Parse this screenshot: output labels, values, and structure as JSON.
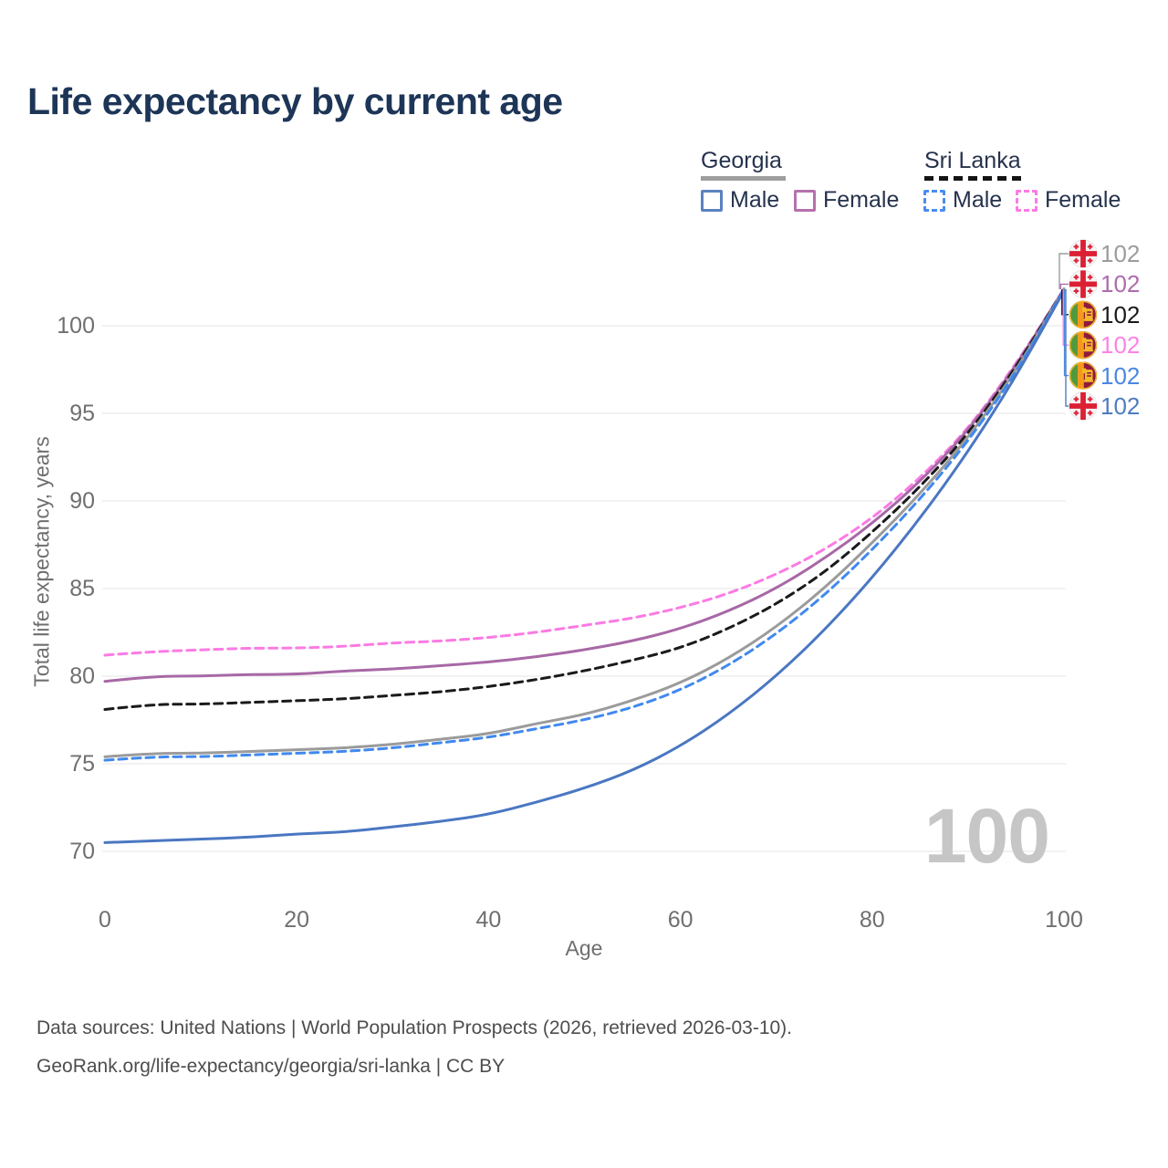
{
  "title": "Life expectancy by current age",
  "legend": {
    "groups": [
      {
        "label": "Georgia",
        "style": "solid",
        "color": "#9e9e9e"
      },
      {
        "label": "Sri Lanka",
        "style": "dashed",
        "color": "#1a1a1a"
      }
    ],
    "items": [
      {
        "label": "Male",
        "style": "solid",
        "color": "#5b82c0"
      },
      {
        "label": "Female",
        "style": "solid",
        "color": "#b671ad"
      },
      {
        "label": "Male",
        "style": "dashed",
        "color": "#4a8cf0"
      },
      {
        "label": "Female",
        "style": "dashed",
        "color": "#fb7be4"
      }
    ]
  },
  "watermark": "100",
  "footer": {
    "line1": "Data sources: United Nations | World Population Prospects (2026, retrieved 2026-03-10).",
    "line2": "GeoRank.org/life-expectancy/georgia/sri-lanka | CC BY"
  },
  "chart_data": {
    "type": "line",
    "title": "Life expectancy by current age",
    "xlabel": "Age",
    "ylabel": "Total life expectancy, years",
    "x_ticks": [
      0,
      20,
      40,
      60,
      80,
      100
    ],
    "y_ticks": [
      70,
      75,
      80,
      85,
      90,
      95,
      100
    ],
    "xlim": [
      0,
      100
    ],
    "ylim": [
      68,
      103
    ],
    "grid": "horizontal",
    "legend_position": "top-right",
    "ages": [
      0,
      5,
      10,
      15,
      20,
      25,
      30,
      35,
      40,
      45,
      50,
      55,
      60,
      65,
      70,
      75,
      80,
      85,
      90,
      95,
      100
    ],
    "series": [
      {
        "name": "Sri Lanka Female",
        "country": "Sri Lanka",
        "sex": "Female",
        "color": "#fb7be4",
        "dash": "9 6",
        "values": [
          81.2,
          81.4,
          81.5,
          81.6,
          81.6,
          81.7,
          81.9,
          82.0,
          82.2,
          82.5,
          82.9,
          83.3,
          83.9,
          84.7,
          85.8,
          87.2,
          89.0,
          91.3,
          94.1,
          97.8,
          102.1
        ]
      },
      {
        "name": "Georgia Female",
        "country": "Georgia",
        "sex": "Female",
        "color": "#a868a6",
        "dash": null,
        "values": [
          79.7,
          80.0,
          80.0,
          80.1,
          80.1,
          80.3,
          80.4,
          80.6,
          80.8,
          81.1,
          81.5,
          82.0,
          82.7,
          83.7,
          85.0,
          86.7,
          88.7,
          91.1,
          94.0,
          97.7,
          102.1
        ]
      },
      {
        "name": "Sri Lanka",
        "country": "Sri Lanka",
        "sex": "Both sexes",
        "color": "#1a1a1a",
        "dash": "9 6",
        "values": [
          78.1,
          78.4,
          78.4,
          78.5,
          78.6,
          78.7,
          78.9,
          79.1,
          79.4,
          79.8,
          80.3,
          80.9,
          81.6,
          82.7,
          84.1,
          85.9,
          88.2,
          90.8,
          93.8,
          97.6,
          102.1
        ]
      },
      {
        "name": "Georgia",
        "country": "Georgia",
        "sex": "Both sexes",
        "color": "#9b9b9b",
        "dash": null,
        "values": [
          75.4,
          75.6,
          75.6,
          75.7,
          75.8,
          75.9,
          76.1,
          76.4,
          76.7,
          77.3,
          77.8,
          78.6,
          79.6,
          81.0,
          82.8,
          85.0,
          87.6,
          90.4,
          93.6,
          97.4,
          102.1
        ]
      },
      {
        "name": "Sri Lanka Male",
        "country": "Sri Lanka",
        "sex": "Male",
        "color": "#4189ee",
        "dash": "9 6",
        "values": [
          75.2,
          75.4,
          75.4,
          75.5,
          75.6,
          75.7,
          75.9,
          76.2,
          76.5,
          77.0,
          77.5,
          78.2,
          79.2,
          80.6,
          82.4,
          84.6,
          87.2,
          90.1,
          93.4,
          97.3,
          102.1
        ]
      },
      {
        "name": "Georgia Male",
        "country": "Georgia",
        "sex": "Male",
        "color": "#4a77c2",
        "dash": null,
        "values": [
          70.5,
          70.6,
          70.7,
          70.8,
          71.0,
          71.1,
          71.4,
          71.7,
          72.1,
          72.8,
          73.6,
          74.6,
          76.0,
          77.8,
          80.0,
          82.6,
          85.6,
          89.0,
          92.8,
          97.1,
          102.0
        ]
      }
    ],
    "end_labels": [
      {
        "flag": "georgia",
        "color": "#9c9c9c",
        "text": "102"
      },
      {
        "flag": "georgia",
        "color": "#ad6cad",
        "text": "102"
      },
      {
        "flag": "sri-lanka",
        "color": "#1a1a1a",
        "text": "102"
      },
      {
        "flag": "sri-lanka",
        "color": "#fb83e5",
        "text": "102"
      },
      {
        "flag": "sri-lanka",
        "color": "#4a87e2",
        "text": "102"
      },
      {
        "flag": "georgia",
        "color": "#4e7dbf",
        "text": "102"
      }
    ]
  }
}
